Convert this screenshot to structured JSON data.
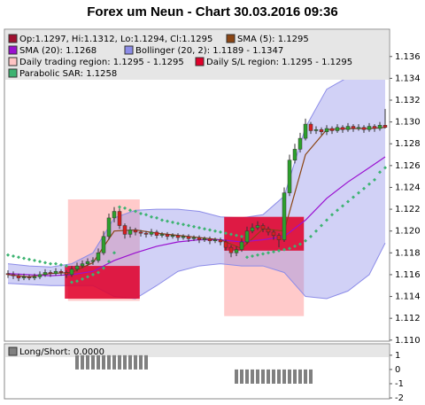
{
  "chart_data": [
    {
      "type": "candlestick",
      "title": "Forex um Neun - Chart 30.03.2016 09:36",
      "ohlc_label": "Op:1.1297, Hi:1.1312, Lo:1.1294, Cl:1.1295",
      "ohlc_color": "#a01030",
      "up_color": "#2ca02c",
      "down_color": "#d62020",
      "open": [
        1.1161,
        1.116,
        1.1159,
        1.1157,
        1.1158,
        1.1157,
        1.1158,
        1.116,
        1.1162,
        1.1161,
        1.1163,
        1.1162,
        1.116,
        1.1165,
        1.1168,
        1.117,
        1.1172,
        1.1173,
        1.118,
        1.1195,
        1.1212,
        1.1218,
        1.1205,
        1.1197,
        1.1201,
        1.1199,
        1.1198,
        1.1197,
        1.1199,
        1.1196,
        1.1197,
        1.1195,
        1.1196,
        1.1194,
        1.1195,
        1.1193,
        1.1194,
        1.1192,
        1.1193,
        1.1191,
        1.1192,
        1.119,
        1.1185,
        1.118,
        1.1183,
        1.119,
        1.12,
        1.1203,
        1.1205,
        1.1202,
        1.1199,
        1.1196,
        1.1192,
        1.1235,
        1.1265,
        1.1275,
        1.1285,
        1.1298,
        1.1292,
        1.1293,
        1.1291,
        1.1294,
        1.1292,
        1.1295,
        1.1293,
        1.1296,
        1.1294,
        1.1295,
        1.1293,
        1.1296,
        1.1294,
        1.1297
      ],
      "high": [
        1.1164,
        1.1163,
        1.1161,
        1.1161,
        1.116,
        1.1161,
        1.1163,
        1.1165,
        1.1164,
        1.1166,
        1.1165,
        1.1164,
        1.1168,
        1.1171,
        1.1173,
        1.1175,
        1.1176,
        1.1184,
        1.12,
        1.1216,
        1.1222,
        1.1221,
        1.1207,
        1.1204,
        1.1203,
        1.1201,
        1.12,
        1.1202,
        1.1201,
        1.1199,
        1.1199,
        1.1198,
        1.1198,
        1.1197,
        1.1197,
        1.1196,
        1.1196,
        1.1195,
        1.1195,
        1.1194,
        1.1194,
        1.1192,
        1.1187,
        1.1186,
        1.1193,
        1.1204,
        1.1207,
        1.1209,
        1.1207,
        1.1204,
        1.1201,
        1.1198,
        1.124,
        1.127,
        1.128,
        1.129,
        1.1303,
        1.13,
        1.1296,
        1.1295,
        1.1297,
        1.1296,
        1.1298,
        1.1297,
        1.1299,
        1.1298,
        1.1298,
        1.1297,
        1.1299,
        1.1298,
        1.13,
        1.1312
      ],
      "low": [
        1.1157,
        1.1156,
        1.1154,
        1.1155,
        1.1155,
        1.1155,
        1.1156,
        1.1158,
        1.1158,
        1.1159,
        1.1159,
        1.1157,
        1.1158,
        1.1163,
        1.1166,
        1.1168,
        1.1169,
        1.1171,
        1.1178,
        1.1192,
        1.1208,
        1.1202,
        1.1193,
        1.1194,
        1.1196,
        1.1195,
        1.1194,
        1.1195,
        1.1193,
        1.1194,
        1.1192,
        1.1193,
        1.1191,
        1.1192,
        1.119,
        1.1191,
        1.1189,
        1.119,
        1.1188,
        1.1189,
        1.1187,
        1.1182,
        1.1176,
        1.1177,
        1.1181,
        1.1188,
        1.1198,
        1.1201,
        1.1199,
        1.1196,
        1.1192,
        1.1185,
        1.119,
        1.1232,
        1.1262,
        1.1272,
        1.1283,
        1.1289,
        1.1289,
        1.1288,
        1.1288,
        1.1289,
        1.129,
        1.129,
        1.1291,
        1.1291,
        1.1292,
        1.129,
        1.1291,
        1.1291,
        1.1292,
        1.1294
      ],
      "close": [
        1.116,
        1.1159,
        1.1157,
        1.1158,
        1.1157,
        1.1158,
        1.116,
        1.1162,
        1.1161,
        1.1163,
        1.1162,
        1.116,
        1.1165,
        1.1168,
        1.117,
        1.1172,
        1.1173,
        1.118,
        1.1195,
        1.1212,
        1.1218,
        1.1205,
        1.1197,
        1.1201,
        1.1199,
        1.1198,
        1.1197,
        1.1199,
        1.1196,
        1.1197,
        1.1195,
        1.1196,
        1.1194,
        1.1195,
        1.1193,
        1.1194,
        1.1192,
        1.1193,
        1.1191,
        1.1192,
        1.119,
        1.1185,
        1.118,
        1.1183,
        1.119,
        1.12,
        1.1203,
        1.1205,
        1.1202,
        1.1199,
        1.1196,
        1.1192,
        1.1235,
        1.1265,
        1.1275,
        1.1285,
        1.1298,
        1.1292,
        1.1293,
        1.1291,
        1.1294,
        1.1292,
        1.1295,
        1.1293,
        1.1296,
        1.1294,
        1.1295,
        1.1293,
        1.1296,
        1.1294,
        1.1297,
        1.1295
      ],
      "lines": [
        {
          "name": "SMA (5): 1.1295",
          "color": "#8b4513",
          "x": [
            0,
            4,
            8,
            12,
            16,
            20,
            24,
            28,
            32,
            36,
            40,
            44,
            48,
            52,
            56,
            60,
            64,
            68,
            71
          ],
          "values": [
            1.116,
            1.1158,
            1.1161,
            1.1162,
            1.1171,
            1.12,
            1.1201,
            1.1198,
            1.1196,
            1.1194,
            1.1192,
            1.1184,
            1.1202,
            1.12,
            1.127,
            1.1293,
            1.1294,
            1.1294,
            1.1295
          ]
        },
        {
          "name": "SMA (20): 1.1268",
          "color": "#9a10d0",
          "x": [
            0,
            4,
            8,
            12,
            16,
            20,
            24,
            28,
            32,
            36,
            40,
            44,
            48,
            52,
            56,
            60,
            64,
            68,
            71
          ],
          "values": [
            1.1161,
            1.116,
            1.1159,
            1.116,
            1.1163,
            1.1173,
            1.118,
            1.1186,
            1.119,
            1.1192,
            1.1192,
            1.119,
            1.1192,
            1.1195,
            1.121,
            1.123,
            1.1245,
            1.1258,
            1.1268
          ]
        }
      ],
      "band": {
        "name": "Bollinger (20, 2): 1.1189 - 1.1347",
        "color": "#8c8ce8",
        "x": [
          0,
          4,
          8,
          12,
          16,
          20,
          24,
          28,
          32,
          36,
          40,
          44,
          48,
          52,
          56,
          60,
          64,
          68,
          71
        ],
        "upper": [
          1.117,
          1.1168,
          1.1167,
          1.117,
          1.118,
          1.1212,
          1.1219,
          1.122,
          1.122,
          1.1218,
          1.1213,
          1.1212,
          1.1215,
          1.1232,
          1.1295,
          1.133,
          1.1341,
          1.1346,
          1.1347
        ],
        "lower": [
          1.1152,
          1.1151,
          1.115,
          1.115,
          1.115,
          1.114,
          1.1138,
          1.115,
          1.1163,
          1.1168,
          1.117,
          1.1168,
          1.1168,
          1.1162,
          1.114,
          1.1138,
          1.1145,
          1.116,
          1.1189
        ]
      },
      "regions": [
        {
          "name": "Daily trading region: 1.1295 - 1.1295",
          "color": "#ffc4c4",
          "opacity": 0.9,
          "spans": [
            {
              "x": [
                11.3,
                24.8
              ],
              "range": [
                1.1136,
                1.1229
              ]
            },
            {
              "x": [
                40.7,
                55.7
              ],
              "range": [
                1.1122,
                1.1213
              ]
            }
          ]
        },
        {
          "name": "Daily S/L region: 1.1295 - 1.1295",
          "color": "#e0002a",
          "opacity": 0.85,
          "spans": [
            {
              "x": [
                10.7,
                24.8
              ],
              "range": [
                1.1138,
                1.1168
              ]
            },
            {
              "x": [
                40.7,
                55.7
              ],
              "range": [
                1.1182,
                1.1213
              ]
            }
          ]
        }
      ],
      "sar": {
        "name": "Parabolic SAR: 1.1258",
        "color": "#3cb371",
        "values": [
          1.1178,
          1.1177,
          1.1176,
          1.1175,
          1.1174,
          1.1173,
          1.1172,
          1.1171,
          1.117,
          1.117,
          1.1169,
          1.1168,
          1.1153,
          1.1154,
          1.1156,
          1.1158,
          1.116,
          1.1162,
          1.1166,
          1.1172,
          1.118,
          1.1222,
          1.1221,
          1.1219,
          1.1218,
          1.1216,
          1.1215,
          1.1213,
          1.1212,
          1.121,
          1.1209,
          1.1208,
          1.1207,
          1.1206,
          1.1205,
          1.1204,
          1.1203,
          1.1202,
          1.1201,
          1.12,
          1.1199,
          1.1198,
          1.1197,
          1.1196,
          1.1195,
          1.1176,
          1.1177,
          1.1178,
          1.1179,
          1.118,
          1.1181,
          1.1182,
          1.1183,
          1.1184,
          1.1186,
          1.1188,
          1.1191,
          1.1195,
          1.12,
          1.1205,
          1.121,
          1.1215,
          1.1219,
          1.1223,
          1.1227,
          1.1231,
          1.1235,
          1.1239,
          1.1243,
          1.1247,
          1.1254,
          1.1258
        ]
      },
      "ylim": [
        1.1099,
        1.1385
      ],
      "yticks": [
        {
          "value": 1.11,
          "label": "1.110"
        },
        1.112,
        1.114,
        1.116,
        1.118,
        {
          "value": 1.12,
          "label": "1.120"
        },
        1.122,
        1.124,
        1.126,
        1.128,
        {
          "value": 1.13,
          "label": "1.130"
        },
        1.132,
        1.134,
        1.136
      ],
      "grid": false
    },
    {
      "type": "bar",
      "name": "Long/Short: 0.0000",
      "color": "#808080",
      "values": [
        0,
        0,
        0,
        0,
        0,
        0,
        0,
        0,
        0,
        0,
        0,
        0,
        0,
        1,
        1,
        1,
        1,
        1,
        1,
        1,
        1,
        1,
        1,
        1,
        1,
        1,
        1,
        0,
        0,
        0,
        0,
        0,
        0,
        0,
        0,
        0,
        0,
        0,
        0,
        0,
        0,
        0,
        0,
        -1,
        -1,
        -1,
        -1,
        -1,
        -1,
        -1,
        -1,
        -1,
        -1,
        -1,
        -1,
        -1,
        -1,
        -1,
        0,
        0,
        0,
        0,
        0,
        0,
        0,
        0,
        0,
        0,
        0,
        0,
        0,
        0
      ],
      "ylim": [
        -2.06,
        1.8
      ],
      "yticks": [
        1,
        0,
        -1,
        -2
      ],
      "grid": false
    }
  ]
}
